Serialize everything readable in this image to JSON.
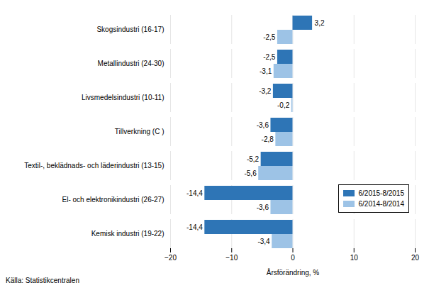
{
  "chart_data": {
    "type": "bar",
    "orientation": "horizontal",
    "categories": [
      "Kemisk industri (19-22)",
      "El- och elektronikindustri (26-27)",
      "Textil-, beklädnads- och läderindustri (13-15)",
      "Tillverkning (C )",
      "Livsmedelsindustri (10-11)",
      "Metallindustri (24-30)",
      "Skogsindustri (16-17)"
    ],
    "series": [
      {
        "name": "6/2015-8/2015",
        "color": "#2E75B6",
        "values": [
          -14.4,
          -14.4,
          -5.2,
          -3.6,
          -3.2,
          -2.5,
          3.2
        ],
        "value_labels": [
          "-14,4",
          "-14,4",
          "-5,2",
          "-3,6",
          "-3,2",
          "-2,5",
          "3,2"
        ]
      },
      {
        "name": "6/2014-8/2014",
        "color": "#9DC3E6",
        "values": [
          -3.4,
          -3.6,
          -5.6,
          -2.8,
          -0.2,
          -3.1,
          -2.5
        ],
        "value_labels": [
          "-3,4",
          "-3,6",
          "-5,6",
          "-2,8",
          "-0,2",
          "-3,1",
          "-2,5"
        ]
      }
    ],
    "xlabel": "Årsförändring, %",
    "xlim": [
      -20,
      20
    ],
    "xticks": [
      -20,
      -10,
      0,
      10,
      20
    ],
    "grid": true,
    "legend": "lower right",
    "data_labels": true,
    "caption": "Källa: Statistikcentralen"
  }
}
